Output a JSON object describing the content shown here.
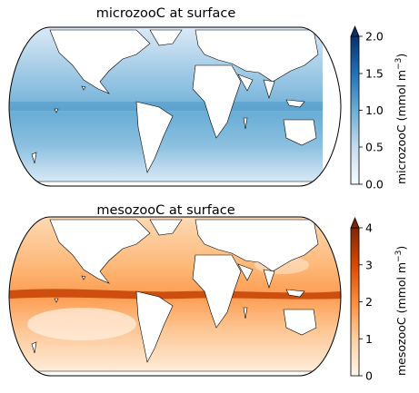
{
  "panels": [
    {
      "title": "microzooC at surface",
      "colorbar": {
        "label_prefix": "microzooC (mmol m",
        "label_exp": "−3",
        "label_suffix": ")",
        "ticks": [
          "0.0",
          "0.5",
          "1.0",
          "1.5",
          "2.0"
        ],
        "range": [
          0,
          2.0
        ],
        "extend": "max",
        "colormap": "Blues",
        "colors": [
          "#f7fbff",
          "#c6dbef",
          "#6baed6",
          "#2171b5",
          "#08306b"
        ]
      },
      "land_color": "#ffffff"
    },
    {
      "title": "mesozooC at surface",
      "colorbar": {
        "label_prefix": "mesozooC (mmol m",
        "label_exp": "−3",
        "label_suffix": ")",
        "ticks": [
          "0",
          "1",
          "2",
          "3",
          "4"
        ],
        "range": [
          0,
          4
        ],
        "extend": "max",
        "colormap": "Oranges",
        "colors": [
          "#fff5eb",
          "#fdd0a2",
          "#fd8d3c",
          "#d94801",
          "#7f2704"
        ]
      },
      "land_color": "#ffffff"
    }
  ]
}
